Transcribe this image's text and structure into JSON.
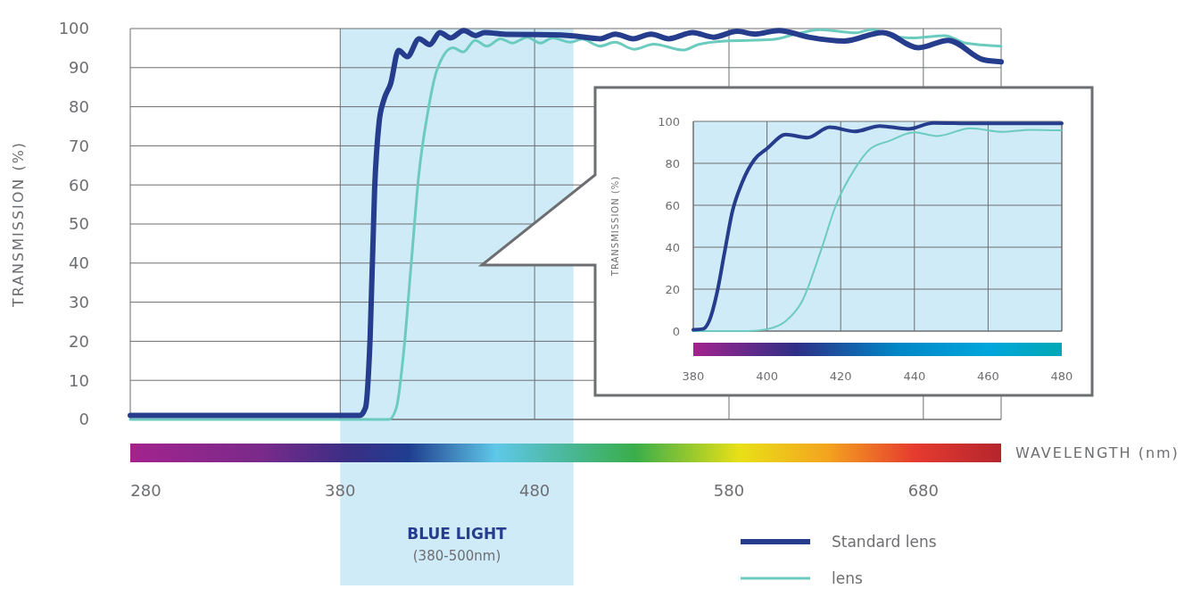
{
  "chart_data": [
    {
      "type": "line",
      "xlabel": "WAVELENGTH (nm)",
      "ylabel": "TRANSMISSION (%)",
      "xlim": [
        272,
        720
      ],
      "ylim": [
        0,
        100
      ],
      "xticks": [
        280,
        380,
        480,
        580,
        680
      ],
      "yticks": [
        0,
        10,
        20,
        30,
        40,
        50,
        60,
        70,
        80,
        90,
        100
      ],
      "grid": true,
      "legend": "bottom right",
      "bands": [
        {
          "axis": "x",
          "from": 380,
          "to": 500,
          "label": "BLUE LIGHT",
          "color": "#d0ebf8"
        }
      ],
      "annotations": [
        "(380-500nm)"
      ],
      "series": [
        {
          "name": "Standard lens",
          "color": "#253d8c",
          "x": [
            272,
            390,
            393,
            395.4,
            397.7,
            400,
            402.3,
            406,
            410,
            414.5,
            420.6,
            426,
            431.3,
            436.7,
            443.6,
            449.7,
            454.3,
            466.5,
            489.4,
            498.6,
            513.8,
            521.5,
            530.7,
            539.9,
            549,
            561.3,
            572,
            584.2,
            593.4,
            605.6,
            621,
            639.3,
            659,
            677.5,
            692.8,
            711,
            720
          ],
          "values": [
            1,
            1,
            3,
            21,
            59,
            76,
            81.5,
            86,
            94.4,
            92.8,
            97.4,
            95.9,
            99,
            97.6,
            99.5,
            98.2,
            99,
            98.5,
            98.4,
            98.2,
            97.4,
            98.6,
            97.4,
            98.6,
            97.4,
            99,
            97.8,
            99.3,
            98.6,
            99.5,
            97.8,
            96.8,
            99,
            95.1,
            97,
            92,
            91.5
          ]
        },
        {
          "name": "lens",
          "color": "#6ccbbf",
          "x": [
            272,
            405.1,
            408.9,
            412.7,
            416.6,
            420.4,
            425,
            429.5,
            438,
            443.3,
            449.4,
            455.5,
            462.4,
            468.5,
            476.2,
            483,
            489.2,
            498.3,
            504.4,
            513.6,
            521.3,
            531.2,
            541.2,
            556.5,
            564.1,
            577.9,
            602.3,
            614.5,
            626.8,
            645.1,
            653.5,
            663.5,
            674,
            691,
            701.6,
            720
          ],
          "values": [
            0,
            0,
            3,
            17.5,
            40.3,
            62.4,
            78.4,
            89,
            95.1,
            94,
            97,
            95.5,
            97.4,
            96.3,
            97.8,
            96.3,
            97.6,
            96.5,
            97.3,
            95.5,
            96.5,
            94.7,
            96,
            94.5,
            95.9,
            96.8,
            97.2,
            98.6,
            99.7,
            98.9,
            99.8,
            98.2,
            97.6,
            98.2,
            96.3,
            95.5
          ]
        }
      ]
    },
    {
      "type": "line",
      "ylabel": "TRANSMISSION (%)",
      "xlim": [
        380,
        480
      ],
      "ylim": [
        0,
        100
      ],
      "xticks": [
        380,
        400,
        420,
        440,
        460,
        480
      ],
      "yticks": [
        0,
        20,
        40,
        60,
        80,
        100
      ],
      "grid": true,
      "bands": [
        {
          "axis": "x",
          "from": 380,
          "to": 480,
          "color": "#d0ebf8"
        }
      ],
      "series": [
        {
          "color": "#253d8c",
          "x": [
            380,
            382.6,
            384.3,
            386.4,
            388.5,
            390.6,
            393.2,
            396.6,
            400,
            405.1,
            411,
            417,
            423.8,
            430.6,
            438.3,
            445.1,
            456.2,
            480
          ],
          "values": [
            0.6,
            1,
            4.8,
            18,
            37.7,
            57,
            70.6,
            81.8,
            87,
            93.7,
            92.2,
            97.2,
            95.2,
            97.8,
            96.4,
            99.3,
            99,
            99
          ]
        },
        {
          "color": "#6ccbbf",
          "x": [
            380,
            394.9,
            400,
            405.1,
            409.4,
            414.5,
            418.7,
            423.8,
            428.1,
            433.2,
            440,
            446,
            455.3,
            463.8,
            471.5,
            480
          ],
          "values": [
            0,
            0,
            0.9,
            4.8,
            13.8,
            37.7,
            60,
            77.3,
            87,
            90.7,
            94.8,
            93,
            96.7,
            95,
            96,
            95.7
          ]
        }
      ]
    }
  ]
}
